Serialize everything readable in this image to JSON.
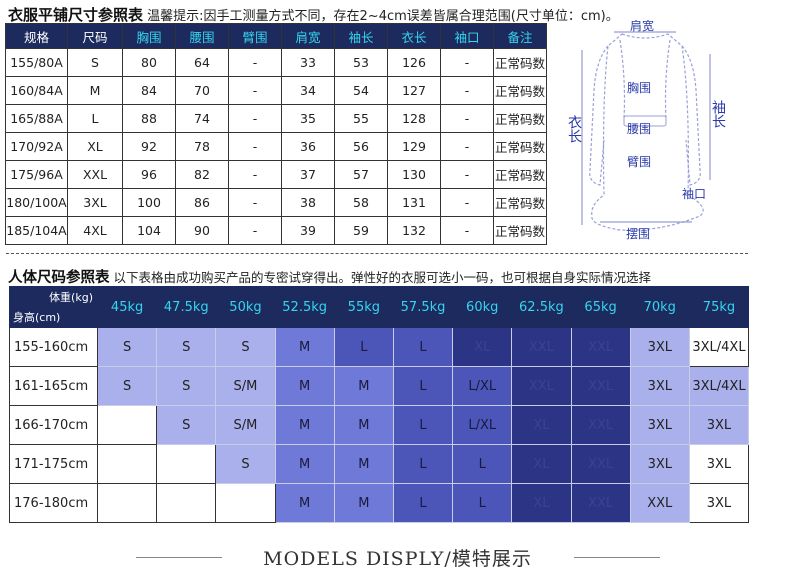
{
  "tile_table": {
    "title": "衣服平铺尺寸参照表",
    "note": "温馨提示:因手工测量方式不同，存在2~4cm误差皆属合理范围(尺寸单位：cm)。",
    "headers": [
      "规格",
      "尺码",
      "胸围",
      "腰围",
      "臂围",
      "肩宽",
      "袖长",
      "衣长",
      "袖口",
      "备注"
    ],
    "rows": [
      [
        "155/80A",
        "S",
        "80",
        "64",
        "-",
        "33",
        "53",
        "126",
        "-",
        "正常码数"
      ],
      [
        "160/84A",
        "M",
        "84",
        "70",
        "-",
        "34",
        "54",
        "127",
        "-",
        "正常码数"
      ],
      [
        "165/88A",
        "L",
        "88",
        "74",
        "-",
        "35",
        "55",
        "128",
        "-",
        "正常码数"
      ],
      [
        "170/92A",
        "XL",
        "92",
        "78",
        "-",
        "36",
        "56",
        "129",
        "-",
        "正常码数"
      ],
      [
        "175/96A",
        "XXL",
        "96",
        "82",
        "-",
        "37",
        "57",
        "130",
        "-",
        "正常码数"
      ],
      [
        "180/100A",
        "3XL",
        "100",
        "86",
        "-",
        "38",
        "58",
        "131",
        "-",
        "正常码数"
      ],
      [
        "185/104A",
        "4XL",
        "104",
        "90",
        "-",
        "39",
        "59",
        "132",
        "-",
        "正常码数"
      ]
    ]
  },
  "garment_diagram": {
    "labels": {
      "shoulder": "肩宽",
      "chest": "胸围",
      "sleeve": "袖长",
      "length": "衣长",
      "waist": "腰围",
      "arm": "臂围",
      "cuff": "袖口",
      "hem": "摆围"
    }
  },
  "body_table": {
    "title": "人体尺码参照表",
    "note": "以下表格由成功购买产品的专密试穿得出。弹性好的衣服可选小一码，也可根据自身实际情况选择",
    "corner_weight": "体重(kg)",
    "corner_height": "身高(cm)",
    "weights": [
      "45kg",
      "47.5kg",
      "50kg",
      "52.5kg",
      "55kg",
      "57.5kg",
      "60kg",
      "62.5kg",
      "65kg",
      "70kg",
      "75kg"
    ],
    "rows": [
      {
        "height": "155-160cm",
        "cells": [
          "S",
          "S",
          "S",
          "M",
          "L",
          "L",
          "XL",
          "XXL",
          "XXL",
          "3XL",
          "3XL/4XL"
        ],
        "shades": [
          1,
          1,
          1,
          2,
          3,
          3,
          4,
          4,
          4,
          5,
          0
        ]
      },
      {
        "height": "161-165cm",
        "cells": [
          "S",
          "S",
          "S/M",
          "M",
          "M",
          "L",
          "L/XL",
          "XXL",
          "XXL",
          "3XL",
          "3XL/4XL"
        ],
        "shades": [
          1,
          1,
          1,
          2,
          2,
          3,
          3,
          4,
          4,
          5,
          5
        ]
      },
      {
        "height": "166-170cm",
        "cells": [
          "",
          "S",
          "S/M",
          "M",
          "M",
          "L",
          "L/XL",
          "XL",
          "XXL",
          "3XL",
          "3XL"
        ],
        "shades": [
          0,
          1,
          1,
          2,
          2,
          3,
          3,
          4,
          4,
          5,
          5
        ]
      },
      {
        "height": "171-175cm",
        "cells": [
          "",
          "",
          "S",
          "M",
          "M",
          "L",
          "L",
          "XL",
          "XXL",
          "3XL",
          "3XL"
        ],
        "shades": [
          0,
          0,
          1,
          2,
          2,
          3,
          3,
          4,
          4,
          5,
          0
        ]
      },
      {
        "height": "176-180cm",
        "cells": [
          "",
          "",
          "",
          "M",
          "M",
          "L",
          "L",
          "XL",
          "XXL",
          "XXL",
          "3XL"
        ],
        "shades": [
          0,
          0,
          0,
          2,
          2,
          3,
          3,
          4,
          4,
          5,
          0
        ]
      }
    ]
  },
  "footer": {
    "text": "MODELS DISPLY/模特展示"
  },
  "colors": {
    "header_bg": "#1c2a5e",
    "header_accent": "#35d5ee",
    "shade_light": "#a9b0eb",
    "shade_mid": "#6e79d8",
    "shade_dark": "#4c56b9",
    "shade_darkest": "#2c3585"
  }
}
